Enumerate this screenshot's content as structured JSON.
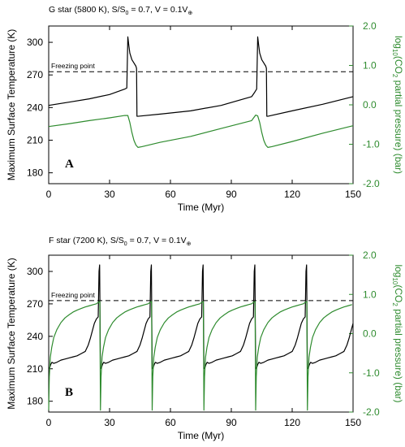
{
  "chart_data": [
    {
      "type": "line",
      "panel_label": "A",
      "title": "G star (5800 K), S/S",
      "title_sub": "0",
      "title_tail": " = 0.7, V = 0.1V",
      "title_sub2": "⊕",
      "xlabel": "Time (Myr)",
      "ylabel": "Maximum Surface Temperature (K)",
      "y2label_prefix": "log",
      "y2label_sub": "10",
      "y2label_mid": "(CO",
      "y2label_sub2": "2",
      "y2label_tail": " partial pressure) (bar)",
      "xlim": [
        0,
        150
      ],
      "ylim": [
        170,
        315
      ],
      "y2lim": [
        -2.0,
        2.0
      ],
      "xticks": [
        "0",
        "30",
        "60",
        "90",
        "120",
        "150"
      ],
      "yticks": [
        "180",
        "210",
        "240",
        "270",
        "300"
      ],
      "y2ticks": [
        "-2.0",
        "-1.0",
        "0.0",
        "1.0",
        "2.0"
      ],
      "annotation": "Freezing point",
      "freezing_point": 273,
      "series": [
        {
          "color": "#000000",
          "axis": "left",
          "x": [
            0,
            10,
            20,
            30,
            37.5,
            38.5,
            39.0,
            39.5,
            40,
            41,
            42,
            43,
            43.3,
            43.5,
            44,
            55,
            70,
            85,
            100,
            101.5,
            102.5,
            103.0,
            103.5,
            104,
            105,
            106,
            107,
            107.3,
            107.5,
            108,
            120,
            135,
            150
          ],
          "y": [
            242,
            245,
            248,
            252,
            257,
            258,
            305,
            297,
            290,
            284,
            281,
            278,
            276,
            232,
            232,
            234,
            237,
            242,
            250,
            254,
            257,
            305,
            297,
            290,
            284,
            281,
            278,
            276,
            232,
            232,
            237,
            243,
            250
          ]
        },
        {
          "color": "#2e8b2e",
          "axis": "right",
          "x": [
            0,
            10,
            20,
            30,
            37.5,
            39,
            40,
            41,
            42,
            43,
            44,
            46,
            55,
            70,
            85,
            100,
            102.0,
            103,
            104,
            105,
            106,
            107,
            108,
            110,
            120,
            135,
            150
          ],
          "y": [
            -0.55,
            -0.48,
            -0.4,
            -0.33,
            -0.27,
            -0.27,
            -0.45,
            -0.7,
            -0.9,
            -1.02,
            -1.08,
            -1.06,
            -0.95,
            -0.8,
            -0.6,
            -0.4,
            -0.26,
            -0.28,
            -0.45,
            -0.7,
            -0.9,
            -1.02,
            -1.08,
            -1.06,
            -0.93,
            -0.72,
            -0.53
          ]
        }
      ]
    },
    {
      "type": "line",
      "panel_label": "B",
      "title": "F star (7200 K), S/S",
      "title_sub": "0",
      "title_tail": " = 0.7, V = 0.1V",
      "title_sub2": "⊕",
      "xlabel": "Time (Myr)",
      "ylabel": "Maximum Surface Temperature (K)",
      "y2label_prefix": "log",
      "y2label_sub": "10",
      "y2label_mid": "(CO",
      "y2label_sub2": "2",
      "y2label_tail": " partial pressure) (bar)",
      "xlim": [
        0,
        150
      ],
      "ylim": [
        170,
        315
      ],
      "y2lim": [
        -2.0,
        2.0
      ],
      "xticks": [
        "0",
        "30",
        "60",
        "90",
        "120",
        "150"
      ],
      "yticks": [
        "180",
        "210",
        "240",
        "270",
        "300"
      ],
      "y2ticks": [
        "-2.0",
        "-1.0",
        "0.0",
        "1.0",
        "2.0"
      ],
      "annotation": "Freezing point",
      "freezing_point": 273,
      "cycle_starts": [
        0,
        25.5,
        51,
        76.5,
        102,
        127.5
      ],
      "series": [
        {
          "color": "#000000",
          "axis": "left",
          "cycle_period": 25.5,
          "x": [
            0,
            0.5,
            1.0,
            1.6,
            2.5,
            4,
            6,
            8,
            10,
            12,
            14,
            16,
            18,
            19.5,
            20.5,
            21.5,
            22.5,
            23.5,
            24.4,
            24.8,
            25.1
          ],
          "y": [
            210,
            211,
            214,
            216,
            215,
            216,
            218,
            219,
            220,
            221,
            222,
            224,
            226,
            232,
            238,
            245,
            252,
            256,
            258,
            300,
            306
          ]
        },
        {
          "color": "#2e8b2e",
          "axis": "right",
          "cycle_period": 25.5,
          "x": [
            0,
            0.3,
            0.8,
            1.5,
            2.5,
            4,
            6,
            8,
            10,
            12,
            14,
            16,
            18,
            20,
            22,
            23.5,
            24.5,
            25.2
          ],
          "y": [
            -1.95,
            -1.1,
            -0.6,
            -0.35,
            -0.1,
            0.1,
            0.28,
            0.4,
            0.48,
            0.55,
            0.6,
            0.64,
            0.68,
            0.71,
            0.74,
            0.76,
            0.8,
            0.82
          ]
        }
      ]
    }
  ]
}
